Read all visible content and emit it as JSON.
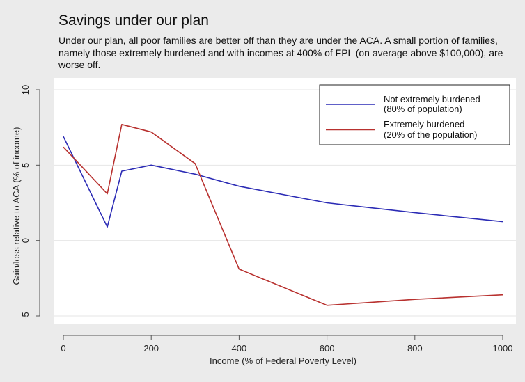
{
  "title": "Savings under our plan",
  "subtitle": "Under our plan, all poor families are better off than they are under the ACA. A small portion of families, namely those extremely burdened and with incomes at 400% of FPL (on average above $100,000), are worse off.",
  "colors": {
    "background": "#ebebeb",
    "plot_bg": "#ffffff",
    "grid": "#e6e6e6",
    "axis": "#555555"
  },
  "chart_data": {
    "type": "line",
    "xlabel": "Income (% of Federal Poverty Level)",
    "ylabel": "Gain/loss relative to ACA (% of income)",
    "xlim": [
      -20,
      1020
    ],
    "ylim": [
      -5,
      10
    ],
    "xticks": [
      0,
      200,
      400,
      600,
      800,
      1000
    ],
    "yticks": [
      -5,
      0,
      5,
      10
    ],
    "grid": true,
    "legend_position": "top-right",
    "series": [
      {
        "name": "Not extremely burdened",
        "name_line2": "(80% of population)",
        "color": "#2b2bb5",
        "points": [
          [
            0,
            6.9
          ],
          [
            100,
            0.9
          ],
          [
            133,
            4.6
          ],
          [
            200,
            5.0
          ],
          [
            300,
            4.4
          ],
          [
            400,
            3.6
          ],
          [
            600,
            2.5
          ],
          [
            800,
            1.85
          ],
          [
            1000,
            1.25
          ]
        ]
      },
      {
        "name": "Extremely burdened",
        "name_line2": "(20% of the population)",
        "color": "#b8312f",
        "points": [
          [
            0,
            6.2
          ],
          [
            100,
            3.1
          ],
          [
            133,
            7.7
          ],
          [
            200,
            7.2
          ],
          [
            300,
            5.1
          ],
          [
            400,
            -1.9
          ],
          [
            600,
            -4.3
          ],
          [
            800,
            -3.9
          ],
          [
            1000,
            -3.6
          ]
        ]
      }
    ]
  }
}
